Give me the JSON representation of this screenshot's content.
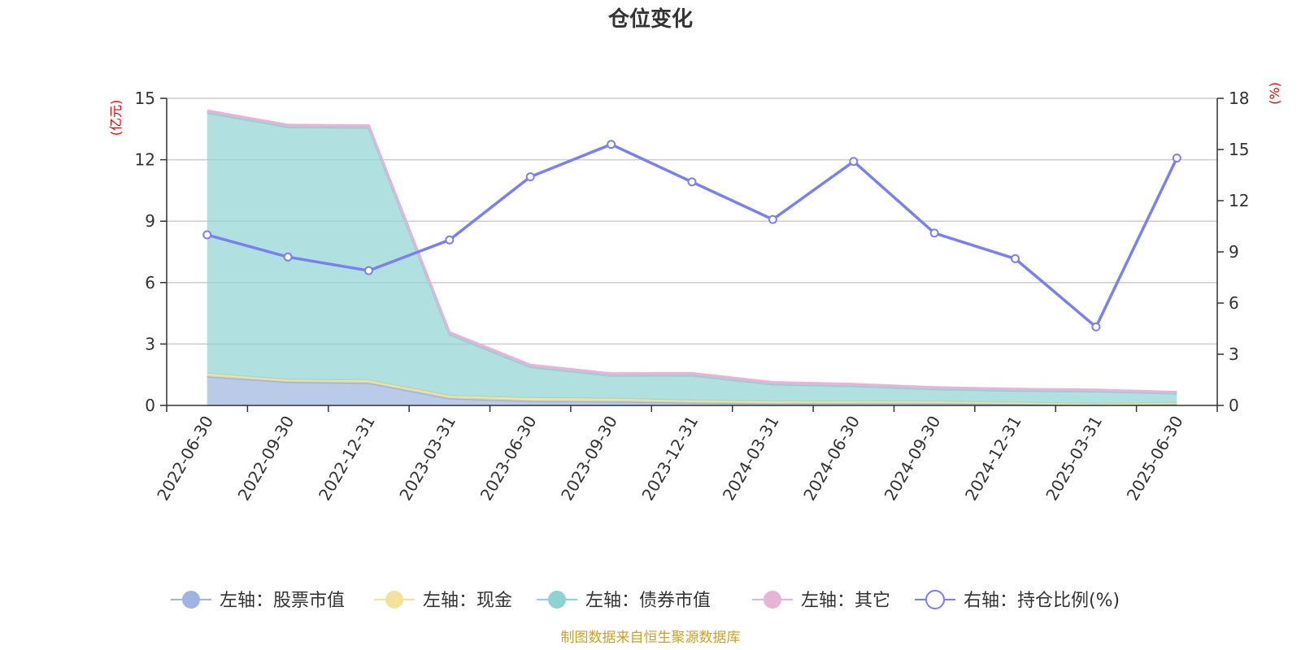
{
  "chart_data": {
    "type": "area",
    "title": "仓位变化",
    "source": "制图数据来自恒生聚源数据库",
    "categories": [
      "2022-06-30",
      "2022-09-30",
      "2022-12-31",
      "2023-03-31",
      "2023-06-30",
      "2023-09-30",
      "2023-12-31",
      "2024-03-31",
      "2024-06-30",
      "2024-09-30",
      "2024-12-31",
      "2025-03-31",
      "2025-06-30"
    ],
    "left_axis": {
      "unit": "(亿元)",
      "min": 0,
      "max": 15,
      "ticks": [
        0,
        3,
        6,
        9,
        12,
        15
      ]
    },
    "right_axis": {
      "unit": "(%)",
      "min": 0,
      "max": 18,
      "ticks": [
        0,
        3,
        6,
        9,
        12,
        15,
        18
      ]
    },
    "grid": true,
    "legend_position": "bottom",
    "series": [
      {
        "name": "左轴：股票市值",
        "axis": "left",
        "kind": "stacked-area",
        "color": "#9db5e0",
        "values": [
          1.42,
          1.15,
          1.1,
          0.35,
          0.22,
          0.2,
          0.14,
          0.1,
          0.11,
          0.1,
          0.08,
          0.03,
          0.09
        ]
      },
      {
        "name": "左轴：现金",
        "axis": "left",
        "kind": "stacked-area",
        "color": "#f5e29a",
        "values": [
          0.13,
          0.1,
          0.12,
          0.12,
          0.14,
          0.13,
          0.1,
          0.09,
          0.08,
          0.09,
          0.06,
          0.04,
          0.04
        ]
      },
      {
        "name": "左轴：债券市值",
        "axis": "left",
        "kind": "stacked-area",
        "color": "#8ed3d3",
        "values": [
          12.75,
          12.35,
          12.35,
          3.0,
          1.52,
          1.13,
          1.23,
          0.84,
          0.76,
          0.61,
          0.58,
          0.62,
          0.46
        ]
      },
      {
        "name": "左轴：其它",
        "axis": "left",
        "kind": "stacked-area",
        "color": "#e7b3d6",
        "values": [
          0.1,
          0.1,
          0.1,
          0.1,
          0.1,
          0.1,
          0.1,
          0.1,
          0.09,
          0.08,
          0.08,
          0.07,
          0.06
        ]
      },
      {
        "name": "右轴：持仓比例(%)",
        "axis": "right",
        "kind": "line",
        "color": "#7b7ff0",
        "values": [
          10.0,
          8.7,
          7.9,
          9.7,
          13.4,
          15.3,
          13.1,
          10.9,
          14.3,
          10.1,
          8.6,
          4.6,
          14.5
        ]
      }
    ]
  }
}
